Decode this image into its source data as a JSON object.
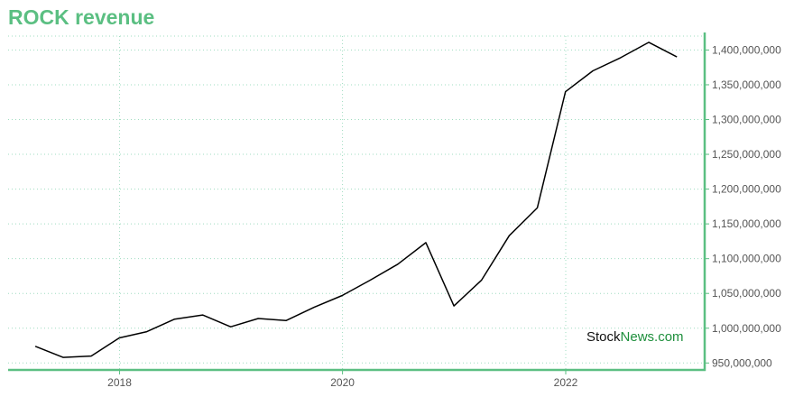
{
  "title": "ROCK revenue",
  "watermark": {
    "part1": "Stock",
    "part2": "News",
    "part3": ".com"
  },
  "colors": {
    "accent": "#5bbf82",
    "line": "#000000",
    "grid": "#9fdcc0",
    "watermark_green": "#1e8f3c"
  },
  "chart_data": {
    "type": "line",
    "title": "ROCK revenue",
    "xlabel": "",
    "ylabel": "",
    "grid": true,
    "ylim": [
      940000000,
      1420000000
    ],
    "xlim": [
      "2017-01-01",
      "2023-04-01"
    ],
    "y_ticks": [
      950000000,
      1000000000,
      1050000000,
      1100000000,
      1150000000,
      1200000000,
      1250000000,
      1300000000,
      1350000000,
      1400000000
    ],
    "y_tick_labels": [
      "950,000,000",
      "1,000,000,000",
      "1,050,000,000",
      "1,100,000,000",
      "1,150,000,000",
      "1,200,000,000",
      "1,250,000,000",
      "1,300,000,000",
      "1,350,000,000",
      "1,400,000,000"
    ],
    "x_ticks": [
      "2018-01-01",
      "2020-01-01",
      "2022-01-01"
    ],
    "x_tick_labels": [
      "2018",
      "2020",
      "2022"
    ],
    "series": [
      {
        "x": [
          "2017-03-31",
          "2017-06-30",
          "2017-09-30",
          "2017-12-31",
          "2018-03-31",
          "2018-06-30",
          "2018-09-30",
          "2018-12-31",
          "2019-03-31",
          "2019-06-30",
          "2019-09-30",
          "2019-12-31",
          "2020-03-31",
          "2020-06-30",
          "2020-09-30",
          "2020-12-31",
          "2021-03-31",
          "2021-06-30",
          "2021-09-30",
          "2021-12-31",
          "2022-03-31",
          "2022-06-30",
          "2022-09-30",
          "2022-12-31"
        ],
        "values": [
          974000000,
          958000000,
          960000000,
          986000000,
          995000000,
          1013000000,
          1019000000,
          1002000000,
          1014000000,
          1011000000,
          1030000000,
          1047000000,
          1069000000,
          1092000000,
          1123000000,
          1032000000,
          1069000000,
          1133000000,
          1173000000,
          1340000000,
          1370000000,
          1389000000,
          1411000000,
          1390000000
        ]
      }
    ]
  }
}
